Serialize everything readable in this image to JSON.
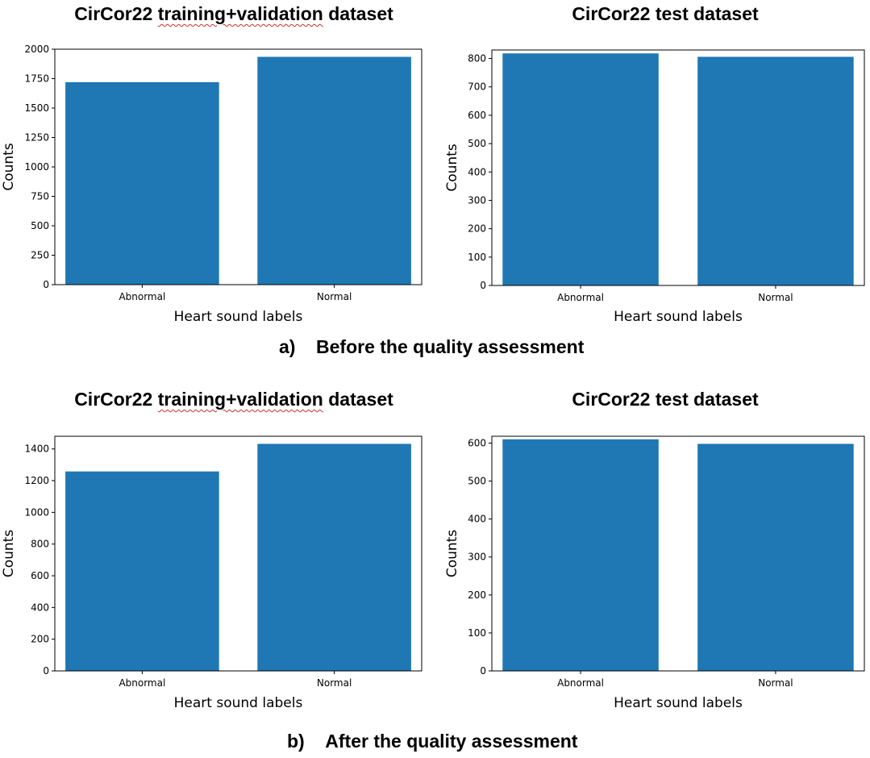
{
  "figure": {
    "caption_a": {
      "letter": "a)",
      "text": "Before the quality assessment"
    },
    "caption_b": {
      "letter": "b)",
      "text": "After the quality assessment"
    }
  },
  "colors": {
    "bar": "#1f77b4",
    "axis": "#000000",
    "text": "#000000"
  },
  "panels": [
    {
      "title_prefix": "CirCor22 ",
      "title_marked": "training+validation",
      "title_suffix": " dataset"
    },
    {
      "title_prefix": "CirCor22 test dataset",
      "title_marked": "",
      "title_suffix": ""
    },
    {
      "title_prefix": "CirCor22 ",
      "title_marked": "training+validation",
      "title_suffix": " dataset"
    },
    {
      "title_prefix": "CirCor22 test dataset",
      "title_marked": "",
      "title_suffix": ""
    }
  ],
  "chart_data": [
    {
      "type": "bar",
      "title": "CirCor22 training+validation dataset",
      "categories": [
        "Abnormal",
        "Normal"
      ],
      "values": [
        1720,
        1935
      ],
      "xlabel": "Heart sound labels",
      "ylabel": "Counts",
      "ylim": [
        0,
        2000
      ],
      "yticks": [
        0,
        250,
        500,
        750,
        1000,
        1250,
        1500,
        1750,
        2000
      ]
    },
    {
      "type": "bar",
      "title": "CirCor22 test dataset",
      "categories": [
        "Abnormal",
        "Normal"
      ],
      "values": [
        818,
        806
      ],
      "xlabel": "Heart sound labels",
      "ylabel": "Counts",
      "ylim": [
        0,
        830
      ],
      "yticks": [
        0,
        100,
        200,
        300,
        400,
        500,
        600,
        700,
        800
      ]
    },
    {
      "type": "bar",
      "title": "CirCor22 training+validation dataset",
      "categories": [
        "Abnormal",
        "Normal"
      ],
      "values": [
        1258,
        1432
      ],
      "xlabel": "Heart sound labels",
      "ylabel": "Counts",
      "ylim": [
        0,
        1480
      ],
      "yticks": [
        0,
        200,
        400,
        600,
        800,
        1000,
        1200,
        1400
      ]
    },
    {
      "type": "bar",
      "title": "CirCor22 test dataset",
      "categories": [
        "Abnormal",
        "Normal"
      ],
      "values": [
        610,
        598
      ],
      "xlabel": "Heart sound labels",
      "ylabel": "Counts",
      "ylim": [
        0,
        618
      ],
      "yticks": [
        0,
        100,
        200,
        300,
        400,
        500,
        600
      ]
    }
  ]
}
